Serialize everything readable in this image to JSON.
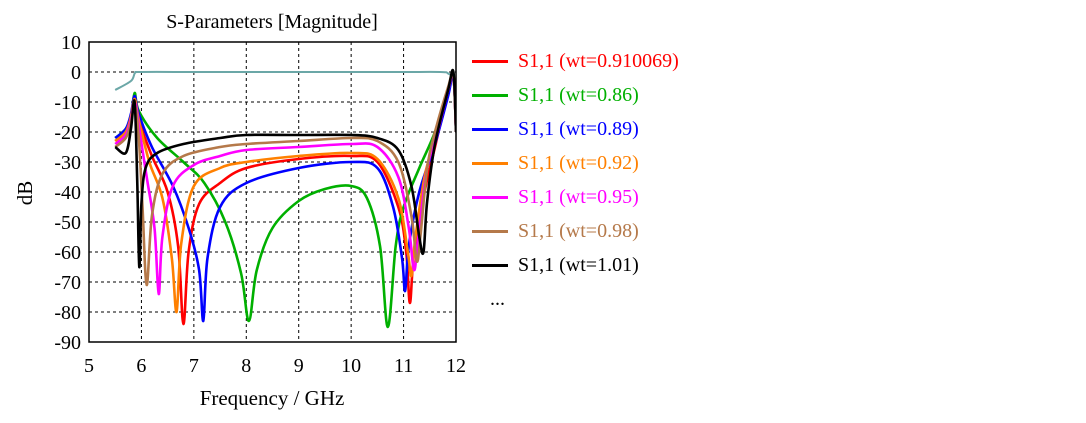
{
  "chart_data": {
    "type": "line",
    "title": "S-Parameters [Magnitude]",
    "xlabel": "Frequency / GHz",
    "ylabel": "dB",
    "xlim": [
      5,
      12
    ],
    "ylim": [
      -90,
      10
    ],
    "xticks": [
      5,
      6,
      7,
      8,
      9,
      10,
      11,
      12
    ],
    "yticks": [
      10,
      0,
      -10,
      -20,
      -30,
      -40,
      -50,
      -60,
      -70,
      -80,
      -90
    ],
    "grid": true,
    "legend_position": "right",
    "legend_more": "...",
    "transmission_curve": {
      "color": "#6ba7a7",
      "x": [
        5.5,
        5.8,
        5.88,
        6.0,
        7.0,
        8.0,
        9.0,
        10.0,
        11.0,
        11.7,
        11.85,
        11.95,
        12.0
      ],
      "y": [
        -6,
        -3,
        -0.3,
        0,
        0,
        0,
        0,
        0,
        0,
        0,
        -0.5,
        -3,
        -15
      ]
    },
    "series": [
      {
        "name": "S1,1 (wt=0.910069)",
        "color": "#ff0000",
        "x": [
          5.5,
          5.7,
          5.8,
          5.87,
          5.95,
          6.2,
          6.5,
          6.7,
          6.8,
          6.9,
          7.1,
          7.5,
          8.0,
          9.0,
          10.0,
          10.5,
          10.9,
          11.05,
          11.12,
          11.2,
          11.4,
          11.6,
          11.8,
          11.95,
          12.0
        ],
        "y": [
          -23,
          -20,
          -15,
          -9,
          -16,
          -28,
          -40,
          -58,
          -84,
          -60,
          -44,
          -37,
          -32,
          -29,
          -28,
          -30,
          -45,
          -60,
          -77,
          -60,
          -40,
          -25,
          -10,
          -1,
          -20
        ]
      },
      {
        "name": "S1,1 (wt=0.86)",
        "color": "#00b000",
        "x": [
          5.5,
          5.7,
          5.8,
          5.87,
          5.95,
          6.3,
          6.8,
          7.2,
          7.6,
          7.9,
          8.05,
          8.2,
          8.5,
          9.0,
          9.5,
          10.0,
          10.3,
          10.55,
          10.7,
          10.85,
          11.0,
          11.3,
          11.6,
          11.85,
          11.95,
          12.0
        ],
        "y": [
          -22,
          -19,
          -15,
          -7,
          -13,
          -22,
          -30,
          -37,
          -50,
          -67,
          -83,
          -66,
          -52,
          -43,
          -39,
          -38,
          -42,
          -58,
          -85,
          -58,
          -45,
          -32,
          -20,
          -6,
          -1,
          -20
        ]
      },
      {
        "name": "S1,1 (wt=0.89)",
        "color": "#0000ff",
        "x": [
          5.5,
          5.7,
          5.8,
          5.87,
          5.95,
          6.2,
          6.6,
          6.9,
          7.1,
          7.18,
          7.26,
          7.5,
          8.0,
          9.0,
          10.0,
          10.5,
          10.8,
          10.97,
          11.03,
          11.1,
          11.3,
          11.6,
          11.85,
          11.95,
          12.0
        ],
        "y": [
          -22,
          -19,
          -14,
          -8,
          -14,
          -25,
          -38,
          -52,
          -66,
          -83,
          -62,
          -45,
          -37,
          -32,
          -30,
          -32,
          -45,
          -62,
          -73,
          -58,
          -40,
          -24,
          -8,
          -1,
          -20
        ]
      },
      {
        "name": "S1,1 (wt=0.92)",
        "color": "#ff8000",
        "x": [
          5.5,
          5.7,
          5.8,
          5.87,
          5.95,
          6.15,
          6.4,
          6.58,
          6.67,
          6.76,
          7.0,
          7.5,
          8.0,
          9.0,
          10.0,
          10.5,
          10.9,
          11.08,
          11.15,
          11.22,
          11.4,
          11.6,
          11.85,
          11.95,
          12.0
        ],
        "y": [
          -23,
          -20,
          -15,
          -9,
          -16,
          -30,
          -42,
          -62,
          -80,
          -57,
          -38,
          -32,
          -30,
          -28,
          -27,
          -29,
          -42,
          -60,
          -68,
          -56,
          -35,
          -22,
          -6,
          -1,
          -20
        ]
      },
      {
        "name": "S1,1 (wt=0.95)",
        "color": "#ff00ff",
        "x": [
          5.5,
          5.7,
          5.8,
          5.87,
          5.95,
          6.1,
          6.25,
          6.33,
          6.4,
          6.6,
          7.0,
          7.5,
          8.0,
          9.0,
          10.0,
          10.5,
          10.9,
          11.1,
          11.2,
          11.28,
          11.45,
          11.65,
          11.85,
          11.95,
          12.0
        ],
        "y": [
          -24,
          -21,
          -16,
          -10,
          -18,
          -35,
          -52,
          -74,
          -55,
          -38,
          -31,
          -28,
          -26,
          -25,
          -24,
          -25,
          -35,
          -52,
          -66,
          -55,
          -32,
          -20,
          -6,
          -1,
          -20
        ]
      },
      {
        "name": "S1,1 (wt=0.98)",
        "color": "#b5794a",
        "x": [
          5.5,
          5.7,
          5.8,
          5.87,
          5.95,
          6.02,
          6.1,
          6.2,
          6.4,
          6.8,
          7.5,
          8.0,
          9.0,
          10.0,
          10.5,
          10.9,
          11.15,
          11.25,
          11.32,
          11.45,
          11.6,
          11.85,
          11.95,
          12.0
        ],
        "y": [
          -25,
          -22,
          -17,
          -11,
          -22,
          -45,
          -71,
          -48,
          -34,
          -28,
          -25,
          -24,
          -23,
          -22,
          -23,
          -30,
          -48,
          -63,
          -55,
          -32,
          -20,
          -5,
          -1,
          -20
        ]
      },
      {
        "name": "S1,1 (wt=1.01)",
        "color": "#000000",
        "x": [
          5.5,
          5.7,
          5.8,
          5.87,
          5.92,
          5.96,
          6.0,
          6.08,
          6.3,
          6.8,
          7.5,
          8.0,
          9.0,
          10.0,
          10.5,
          10.9,
          11.15,
          11.3,
          11.38,
          11.45,
          11.6,
          11.85,
          11.95,
          12.0
        ],
        "y": [
          -25,
          -27,
          -19,
          -10,
          -36,
          -65,
          -44,
          -32,
          -27,
          -24,
          -22,
          -21,
          -21,
          -21,
          -22,
          -26,
          -38,
          -55,
          -60,
          -43,
          -24,
          -6,
          0,
          -20
        ]
      }
    ]
  }
}
